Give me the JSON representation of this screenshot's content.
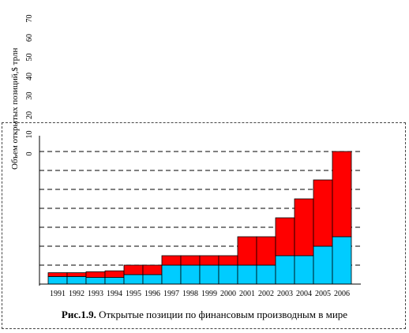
{
  "chart_data": {
    "type": "bar",
    "stacked": true,
    "categories": [
      "1991",
      "1992",
      "1993",
      "1994",
      "1995",
      "1996",
      "1997",
      "1998",
      "1999",
      "2000",
      "2001",
      "2002",
      "2003",
      "2004",
      "2005",
      "2006"
    ],
    "series": [
      {
        "name": "",
        "color": "#00ccff",
        "values": [
          4,
          4,
          3.5,
          3.5,
          5,
          5,
          10,
          10,
          10,
          10,
          10,
          10,
          15,
          15,
          20,
          25
        ]
      },
      {
        "name": "",
        "color": "#ff0000",
        "values": [
          2,
          2,
          3,
          3.5,
          5,
          5,
          5,
          5,
          5,
          5,
          15,
          15,
          20,
          30,
          35,
          45
        ]
      }
    ],
    "ylabel": "Объем открытых позиций,$ трлн",
    "y_ticks": [
      0,
      10,
      20,
      30,
      40,
      50,
      60,
      70
    ],
    "ylim": [
      0,
      70
    ],
    "grid": true,
    "grid_style": "dashed"
  },
  "caption": {
    "label": "Рис.1.9.",
    "text": " Открытые позиции по финансовым производным в мире"
  }
}
